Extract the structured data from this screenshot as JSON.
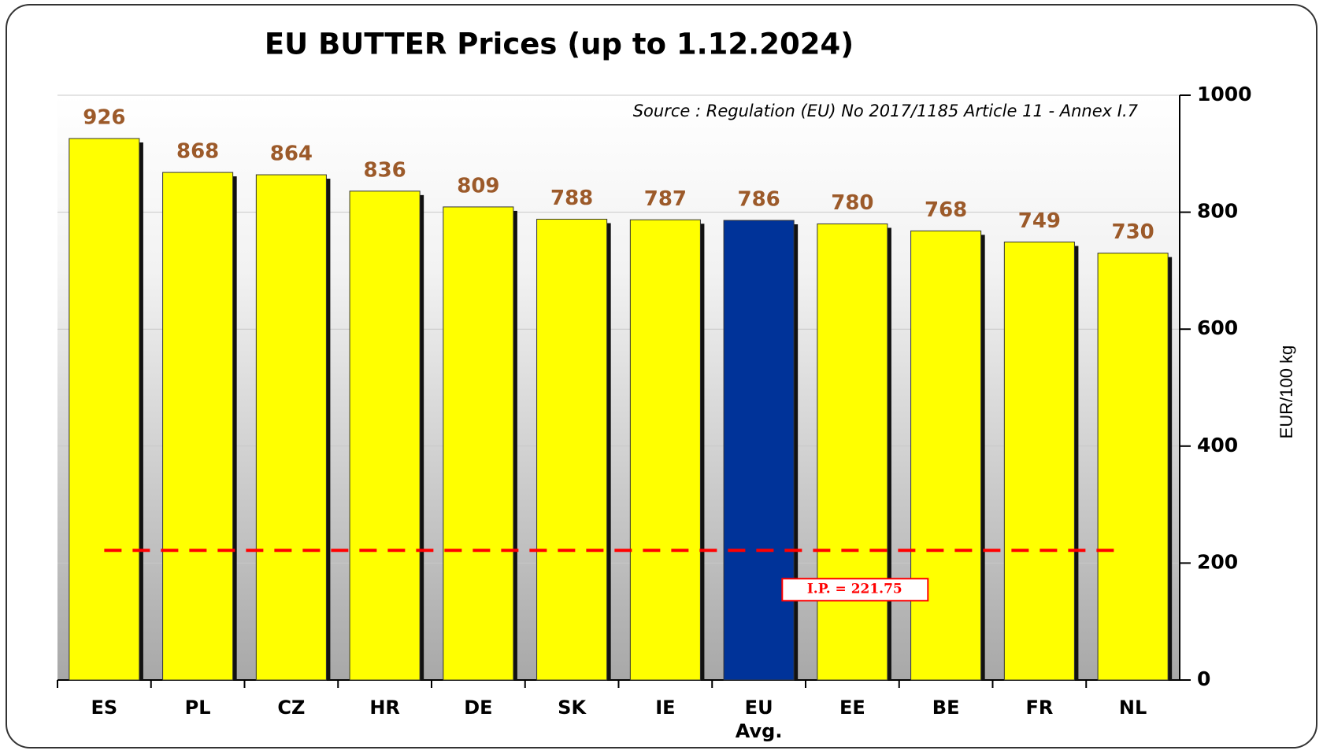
{
  "chart_data": {
    "type": "bar",
    "title": "EU  BUTTER Prices  (up to 1.12.2024)",
    "source": "Source : Regulation  (EU) No 2017/1185 Article 11 - Annex I.7",
    "y_axis_label": "EUR/100 kg",
    "categories": [
      "ES",
      "PL",
      "CZ",
      "HR",
      "DE",
      "SK",
      "IE",
      "EU\nAvg.",
      "EE",
      "BE",
      "FR",
      "NL"
    ],
    "values": [
      926,
      868,
      864,
      836,
      809,
      788,
      787,
      786,
      780,
      768,
      749,
      730
    ],
    "colors": [
      "#ffff00",
      "#ffff00",
      "#ffff00",
      "#ffff00",
      "#ffff00",
      "#ffff00",
      "#ffff00",
      "#003399",
      "#ffff00",
      "#ffff00",
      "#ffff00",
      "#ffff00"
    ],
    "ylim": [
      0,
      1000
    ],
    "yticks": [
      0,
      200,
      400,
      600,
      800,
      1000
    ],
    "grid": true,
    "reference_line": {
      "value": 221.75,
      "label": "I.P. = 221.75",
      "color": "#ff0000"
    }
  }
}
